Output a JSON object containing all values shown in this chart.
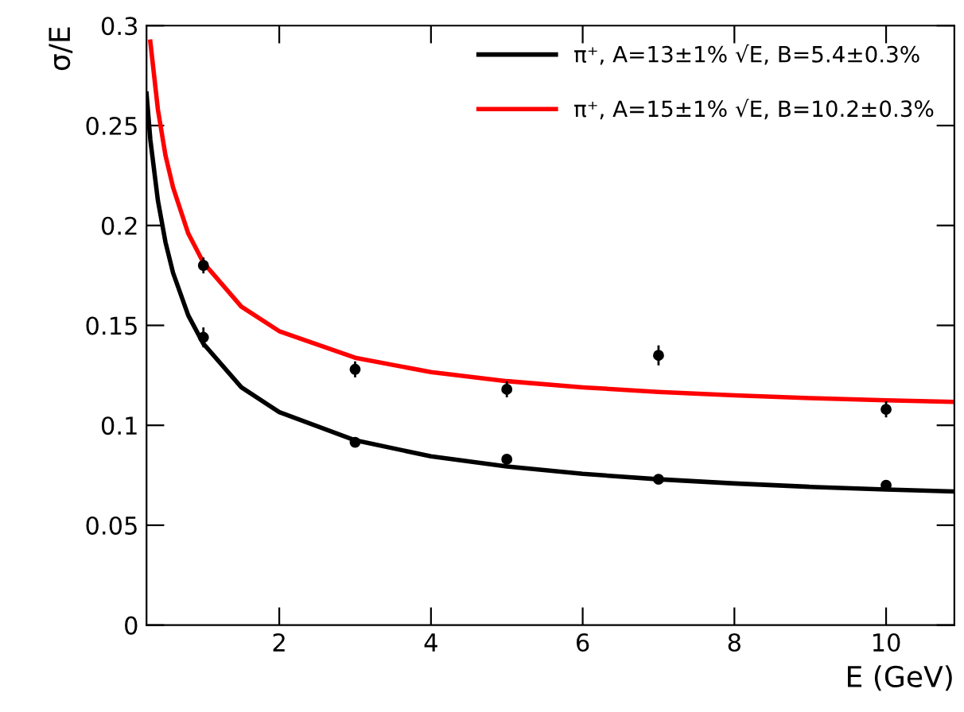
{
  "chart_data": {
    "type": "line",
    "xlabel": "E (GeV)",
    "ylabel": "σ/E",
    "xlim": [
      0.25,
      10.9
    ],
    "ylim": [
      0,
      0.3
    ],
    "xticks": [
      2,
      4,
      6,
      8,
      10
    ],
    "yticks": [
      0,
      0.05,
      0.1,
      0.15,
      0.2,
      0.25,
      0.3
    ],
    "grid": false,
    "legend": "top right",
    "series": [
      {
        "name": "π⁺, A=13±1% √E, B=5.4±0.3%",
        "color": "#000000",
        "x": [
          0.25,
          0.3,
          0.4,
          0.5,
          0.6,
          0.8,
          1,
          1.5,
          2,
          3,
          4,
          5,
          6,
          7,
          8,
          9,
          10,
          10.9
        ],
        "values": [
          0.266,
          0.243,
          0.2125,
          0.1916,
          0.1763,
          0.155,
          0.1408,
          0.119,
          0.1066,
          0.0925,
          0.0845,
          0.0794,
          0.0757,
          0.073,
          0.0709,
          0.0692,
          0.0679,
          0.0669
        ]
      },
      {
        "name": "π⁺, A=15±1% √E, B=10.2±0.3%",
        "color": "#ff0000",
        "x": [
          0.3,
          0.4,
          0.5,
          0.6,
          0.8,
          1,
          1.5,
          2,
          3,
          4,
          5,
          6,
          7,
          8,
          9,
          10,
          10.9
        ],
        "values": [
          0.292,
          0.258,
          0.235,
          0.219,
          0.196,
          0.1814,
          0.1594,
          0.1471,
          0.1338,
          0.1266,
          0.1221,
          0.119,
          0.1167,
          0.115,
          0.1136,
          0.1125,
          0.1117
        ]
      },
      {
        "type": "scatter",
        "color": "#000000",
        "marker": "circle",
        "x": [
          1,
          3,
          5,
          7,
          10
        ],
        "values": [
          0.144,
          0.0915,
          0.083,
          0.073,
          0.07
        ],
        "errors": [
          0.005,
          0.002,
          0.002,
          0.002,
          0.002
        ]
      },
      {
        "type": "scatter",
        "color": "#000000",
        "marker": "circle",
        "x": [
          1,
          3,
          5,
          7,
          10
        ],
        "values": [
          0.18,
          0.128,
          0.118,
          0.135,
          0.108
        ],
        "errors": [
          0.004,
          0.004,
          0.004,
          0.005,
          0.004
        ]
      }
    ]
  }
}
